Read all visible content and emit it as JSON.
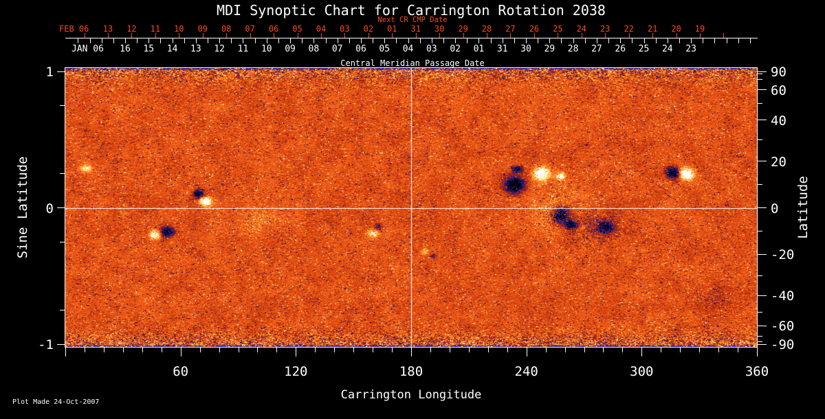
{
  "title": "MDI Synoptic Chart for Carrington Rotation 2038",
  "footer": {
    "plot_made": "Plot Made 24-Oct-2007"
  },
  "colors": {
    "background": "#000000",
    "axis_text": "#ffffff",
    "next_cr_red": "#ff4a14",
    "base_orange": "#e8571a"
  },
  "top_axis": {
    "next_cr_label": "Next CR CMP Date",
    "cmp_label": "Central Meridian Passage Date",
    "feb_header": "FEB 06",
    "jan_header": "JAN 06",
    "next_cr_days": [
      "13",
      "12",
      "11",
      "10",
      "09",
      "08",
      "07",
      "06",
      "05",
      "04",
      "03",
      "02",
      "01",
      "31",
      "30",
      "29",
      "28",
      "27",
      "26",
      "25",
      "24",
      "23",
      "22",
      "21",
      "20",
      "19"
    ],
    "cmp_days": [
      "16",
      "15",
      "14",
      "13",
      "12",
      "11",
      "10",
      "09",
      "08",
      "07",
      "06",
      "05",
      "04",
      "03",
      "02",
      "01",
      "31",
      "30",
      "29",
      "28",
      "27",
      "26",
      "25",
      "24",
      "23"
    ]
  },
  "x_axis": {
    "label": "Carrington Longitude",
    "tick_labels": [
      "60",
      "120",
      "180",
      "240",
      "300",
      "360"
    ],
    "tick_values": [
      60,
      120,
      180,
      240,
      300,
      360
    ],
    "minor_step_deg": 10,
    "range": [
      0,
      360
    ]
  },
  "y_left": {
    "label": "Sine Latitude",
    "tick_labels": [
      "1",
      "0",
      "-1"
    ],
    "tick_values": [
      1,
      0,
      -1
    ],
    "minor_values": [
      0.75,
      0.25,
      -0.25,
      -0.75
    ],
    "range": [
      -1,
      1
    ]
  },
  "y_right": {
    "label": "Latitude",
    "tick_labels": [
      "90",
      "60",
      "40",
      "20",
      "0",
      "-20",
      "-40",
      "-60",
      "-90"
    ],
    "tick_values": [
      90,
      60,
      40,
      20,
      0,
      -20,
      -40,
      -60,
      -90
    ],
    "minor_values": [
      80,
      70,
      50,
      30,
      10,
      -10,
      -30,
      -50,
      -70,
      -80
    ]
  },
  "chart_data": {
    "type": "heatmap",
    "title": "MDI Synoptic Chart for Carrington Rotation 2038",
    "xlabel": "Carrington Longitude",
    "ylabel_left": "Sine Latitude",
    "ylabel_right": "Latitude",
    "x_range_deg": [
      0,
      360
    ],
    "y_range_sine_latitude": [
      -1,
      1
    ],
    "description": "Full-disk solar magnetic field synoptic map for Carrington rotation 2038; speckled red-orange background (weak field) with bright white/yellow positive-polarity and dark blue/black negative-polarity active regions; noise amplitude increases toward the poles; white crosshair reference lines at longitude 180 and sine latitude 0.",
    "crosshair": {
      "longitude_deg": 180,
      "sine_latitude": 0
    },
    "palette_stops": [
      [
        -1.0,
        "#000004"
      ],
      [
        -0.8,
        "#000014"
      ],
      [
        -0.55,
        "#2226c4"
      ],
      [
        -0.42,
        "#381a80"
      ],
      [
        -0.33,
        "#7c1410"
      ],
      [
        -0.18,
        "#b02a0c"
      ],
      [
        0.0,
        "#dd4810"
      ],
      [
        0.15,
        "#f2601c"
      ],
      [
        0.3,
        "#fb7d22"
      ],
      [
        0.45,
        "#ffa930"
      ],
      [
        0.58,
        "#ffd34a"
      ],
      [
        0.7,
        "#ffefa0"
      ],
      [
        0.82,
        "#ffffff"
      ],
      [
        1.5,
        "#ffffff"
      ]
    ],
    "active_regions": [
      {
        "lon": 10.7,
        "sin_lat": 0.29,
        "rlon": 2.9,
        "rsin": 0.03,
        "amp": 0.75,
        "speckle": false
      },
      {
        "lon": 69.1,
        "sin_lat": 0.103,
        "rlon": 2.5,
        "rsin": 0.03,
        "amp": -1.2,
        "speckle": false
      },
      {
        "lon": 72.7,
        "sin_lat": 0.048,
        "rlon": 2.9,
        "rsin": 0.03,
        "amp": 1.5,
        "speckle": false
      },
      {
        "lon": 46.5,
        "sin_lat": -0.194,
        "rlon": 2.5,
        "rsin": 0.03,
        "amp": 1.2,
        "speckle": false
      },
      {
        "lon": 53.0,
        "sin_lat": -0.174,
        "rlon": 3.2,
        "rsin": 0.035,
        "amp": -1.3,
        "speckle": false
      },
      {
        "lon": 100.0,
        "sin_lat": -0.088,
        "rlon": 10.7,
        "rsin": 0.09,
        "amp": 0.45,
        "speckle": true
      },
      {
        "lon": 160.0,
        "sin_lat": -0.185,
        "rlon": 2.9,
        "rsin": 0.03,
        "amp": 0.8,
        "speckle": false
      },
      {
        "lon": 162.6,
        "sin_lat": -0.139,
        "rlon": 1.8,
        "rsin": 0.02,
        "amp": -0.6,
        "speckle": false
      },
      {
        "lon": 187.0,
        "sin_lat": -0.32,
        "rlon": 1.8,
        "rsin": 0.02,
        "amp": 0.6,
        "speckle": false
      },
      {
        "lon": 191.5,
        "sin_lat": -0.35,
        "rlon": 1.4,
        "rsin": 0.015,
        "amp": -0.5,
        "speckle": false
      },
      {
        "lon": 233.7,
        "sin_lat": 0.169,
        "rlon": 4.7,
        "rsin": 0.055,
        "amp": -1.4,
        "speckle": false
      },
      {
        "lon": 235.2,
        "sin_lat": 0.285,
        "rlon": 2.5,
        "rsin": 0.025,
        "amp": -1.0,
        "speckle": false
      },
      {
        "lon": 247.7,
        "sin_lat": 0.254,
        "rlon": 3.9,
        "rsin": 0.045,
        "amp": 1.3,
        "speckle": false
      },
      {
        "lon": 257.7,
        "sin_lat": 0.234,
        "rlon": 2.1,
        "rsin": 0.025,
        "amp": 1.0,
        "speckle": false
      },
      {
        "lon": 255.9,
        "sin_lat": -0.013,
        "rlon": 15.0,
        "rsin": 0.166,
        "amp": 0.5,
        "speckle": true
      },
      {
        "lon": 257.7,
        "sin_lat": -0.053,
        "rlon": 4.3,
        "rsin": 0.055,
        "amp": -1.2,
        "speckle": false
      },
      {
        "lon": 263.0,
        "sin_lat": -0.123,
        "rlon": 2.9,
        "rsin": 0.03,
        "amp": -1.0,
        "speckle": false
      },
      {
        "lon": 275.6,
        "sin_lat": -0.139,
        "rlon": 14.3,
        "rsin": 0.141,
        "amp": -0.45,
        "speckle": true
      },
      {
        "lon": 281.0,
        "sin_lat": -0.139,
        "rlon": 3.6,
        "rsin": 0.04,
        "amp": -0.9,
        "speckle": false
      },
      {
        "lon": 316.0,
        "sin_lat": 0.259,
        "rlon": 3.2,
        "rsin": 0.04,
        "amp": -1.3,
        "speckle": false
      },
      {
        "lon": 323.2,
        "sin_lat": 0.249,
        "rlon": 3.6,
        "rsin": 0.04,
        "amp": 1.4,
        "speckle": false
      },
      {
        "lon": 336.4,
        "sin_lat": -0.667,
        "rlon": 14.3,
        "rsin": 0.09,
        "amp": -0.3,
        "speckle": true
      }
    ],
    "legend": "none",
    "grid": "crosshair only"
  }
}
